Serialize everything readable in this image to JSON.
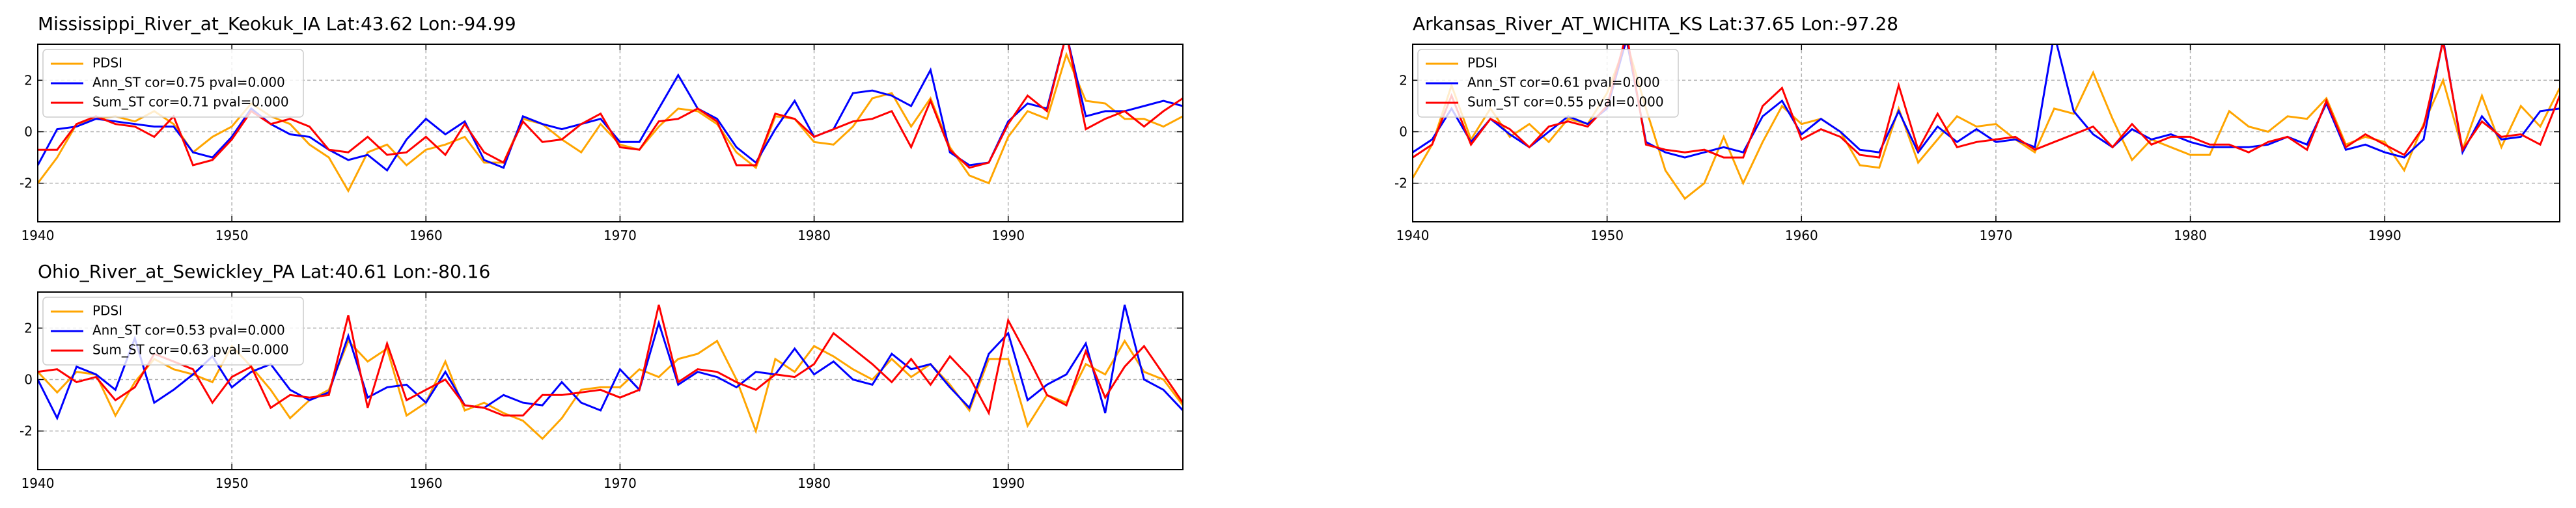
{
  "chart_data": [
    {
      "type": "line",
      "title": "Mississippi_River_at_Keokuk_IA  Lat:43.62 Lon:-94.99",
      "x": [
        1940,
        1941,
        1942,
        1943,
        1944,
        1945,
        1946,
        1947,
        1948,
        1949,
        1950,
        1951,
        1952,
        1953,
        1954,
        1955,
        1956,
        1957,
        1958,
        1959,
        1960,
        1961,
        1962,
        1963,
        1964,
        1965,
        1966,
        1967,
        1968,
        1969,
        1970,
        1971,
        1972,
        1973,
        1974,
        1975,
        1976,
        1977,
        1978,
        1979,
        1980,
        1981,
        1982,
        1983,
        1984,
        1985,
        1986,
        1987,
        1988,
        1989,
        1990,
        1991,
        1992,
        1993,
        1994,
        1995,
        1996,
        1997,
        1998,
        1999
      ],
      "series": [
        {
          "name": "PDSI",
          "color": "#ffa500",
          "values": [
            -2.0,
            -1.0,
            0.3,
            0.5,
            0.6,
            0.4,
            0.8,
            0.3,
            -0.8,
            -0.2,
            0.2,
            1.1,
            0.6,
            0.3,
            -0.5,
            -1.0,
            -2.3,
            -0.8,
            -0.5,
            -1.3,
            -0.7,
            -0.5,
            -0.2,
            -1.2,
            -1.2,
            0.5,
            0.3,
            -0.3,
            -0.8,
            0.3,
            -0.5,
            -0.7,
            0.2,
            0.9,
            0.8,
            0.3,
            -0.8,
            -1.4,
            0.6,
            0.5,
            -0.4,
            -0.5,
            0.2,
            1.3,
            1.5,
            0.2,
            1.3,
            -0.6,
            -1.7,
            -2.0,
            -0.2,
            0.8,
            0.5,
            3.0,
            1.2,
            1.1,
            0.5,
            0.5,
            0.2,
            0.6
          ]
        },
        {
          "name": "Ann_ST cor=0.75 pval=0.000",
          "color": "#0000ff",
          "values": [
            -1.3,
            0.1,
            0.2,
            0.5,
            0.4,
            0.3,
            0.2,
            0.2,
            -0.8,
            -1.0,
            -0.2,
            0.9,
            0.3,
            -0.1,
            -0.2,
            -0.7,
            -1.1,
            -0.9,
            -1.5,
            -0.3,
            0.5,
            -0.1,
            0.4,
            -1.1,
            -1.4,
            0.6,
            0.3,
            0.1,
            0.3,
            0.5,
            -0.4,
            -0.4,
            0.9,
            2.2,
            0.9,
            0.5,
            -0.6,
            -1.2,
            0.1,
            1.2,
            -0.2,
            0.1,
            1.5,
            1.6,
            1.4,
            1.0,
            2.4,
            -0.8,
            -1.3,
            -1.2,
            0.4,
            1.1,
            0.9,
            3.8,
            0.6,
            0.8,
            0.8,
            1.0,
            1.2,
            1.0
          ]
        },
        {
          "name": "Sum_ST cor=0.71 pval=0.000",
          "color": "#ff0000",
          "values": [
            -0.7,
            -0.7,
            0.3,
            0.6,
            0.3,
            0.2,
            -0.2,
            0.6,
            -1.3,
            -1.1,
            -0.3,
            0.8,
            0.3,
            0.5,
            0.2,
            -0.7,
            -0.8,
            -0.2,
            -0.9,
            -0.8,
            -0.2,
            -0.9,
            0.3,
            -0.8,
            -1.2,
            0.4,
            -0.4,
            -0.3,
            0.3,
            0.7,
            -0.6,
            -0.7,
            0.4,
            0.5,
            0.9,
            0.4,
            -1.3,
            -1.3,
            0.7,
            0.5,
            -0.2,
            0.1,
            0.4,
            0.5,
            0.8,
            -0.6,
            1.2,
            -0.7,
            -1.4,
            -1.2,
            0.3,
            1.4,
            0.8,
            3.8,
            0.1,
            0.5,
            0.8,
            0.2,
            0.8,
            1.3
          ]
        }
      ],
      "xlim": [
        1940,
        1999
      ],
      "xticks": [
        1940,
        1950,
        1960,
        1970,
        1980,
        1990
      ],
      "ylim": [
        -3.5,
        3.4
      ],
      "yticks": [
        -2,
        0,
        2
      ],
      "grid": true,
      "legend": "upper left"
    },
    {
      "type": "line",
      "title": "Arkansas_River_AT_WICHITA_KS  Lat:37.65 Lon:-97.28",
      "x": [
        1940,
        1941,
        1942,
        1943,
        1944,
        1945,
        1946,
        1947,
        1948,
        1949,
        1950,
        1951,
        1952,
        1953,
        1954,
        1955,
        1956,
        1957,
        1958,
        1959,
        1960,
        1961,
        1962,
        1963,
        1964,
        1965,
        1966,
        1967,
        1968,
        1969,
        1970,
        1971,
        1972,
        1973,
        1974,
        1975,
        1976,
        1977,
        1978,
        1979,
        1980,
        1981,
        1982,
        1983,
        1984,
        1985,
        1986,
        1987,
        1988,
        1989,
        1990,
        1991,
        1992,
        1993,
        1994,
        1995,
        1996,
        1997,
        1998,
        1999
      ],
      "series": [
        {
          "name": "PDSI",
          "color": "#ffa500",
          "values": [
            -1.8,
            -0.5,
            1.8,
            -0.3,
            0.9,
            -0.2,
            0.3,
            -0.4,
            0.5,
            0.3,
            1.5,
            3.5,
            0.9,
            -1.5,
            -2.6,
            -2.0,
            -0.2,
            -2.0,
            -0.4,
            1.0,
            0.3,
            0.5,
            0.0,
            -1.3,
            -1.4,
            0.9,
            -1.2,
            -0.3,
            0.6,
            0.2,
            0.3,
            -0.3,
            -0.8,
            0.9,
            0.7,
            2.3,
            0.5,
            -1.1,
            -0.3,
            -0.6,
            -0.9,
            -0.9,
            0.8,
            0.2,
            0.0,
            0.6,
            0.5,
            1.3,
            -0.5,
            -0.2,
            -0.4,
            -1.5,
            0.3,
            2.0,
            -0.7,
            1.4,
            -0.6,
            1.0,
            0.2,
            1.7
          ]
        },
        {
          "name": "Ann_ST cor=0.61 pval=0.000",
          "color": "#0000ff",
          "values": [
            -0.8,
            -0.3,
            0.9,
            -0.4,
            0.5,
            -0.1,
            -0.6,
            0.0,
            0.6,
            0.3,
            0.9,
            3.6,
            -0.4,
            -0.8,
            -1.0,
            -0.8,
            -0.6,
            -0.8,
            0.6,
            1.2,
            -0.1,
            0.5,
            0.0,
            -0.7,
            -0.8,
            0.8,
            -0.8,
            0.2,
            -0.4,
            0.1,
            -0.4,
            -0.3,
            -0.6,
            3.8,
            0.8,
            -0.1,
            -0.6,
            0.1,
            -0.3,
            -0.1,
            -0.4,
            -0.6,
            -0.6,
            -0.6,
            -0.5,
            -0.2,
            -0.5,
            1.1,
            -0.7,
            -0.5,
            -0.8,
            -1.0,
            -0.3,
            3.6,
            -0.8,
            0.6,
            -0.3,
            -0.2,
            0.8,
            0.9
          ]
        },
        {
          "name": "Sum_ST cor=0.55 pval=0.000",
          "color": "#ff0000",
          "values": [
            -1.0,
            -0.5,
            1.4,
            -0.5,
            0.5,
            0.1,
            -0.6,
            0.2,
            0.4,
            0.2,
            1.0,
            3.8,
            -0.5,
            -0.7,
            -0.8,
            -0.7,
            -1.0,
            -1.0,
            1.0,
            1.7,
            -0.3,
            0.1,
            -0.2,
            -0.9,
            -1.0,
            1.8,
            -0.7,
            0.7,
            -0.6,
            -0.4,
            -0.3,
            -0.2,
            -0.7,
            -0.4,
            -0.1,
            0.2,
            -0.6,
            0.3,
            -0.5,
            -0.2,
            -0.2,
            -0.5,
            -0.5,
            -0.8,
            -0.4,
            -0.2,
            -0.7,
            1.2,
            -0.6,
            -0.1,
            -0.5,
            -0.9,
            0.2,
            3.5,
            -0.7,
            0.4,
            -0.2,
            -0.1,
            -0.5,
            1.4
          ]
        }
      ],
      "xlim": [
        1940,
        1999
      ],
      "xticks": [
        1940,
        1950,
        1960,
        1970,
        1980,
        1990
      ],
      "ylim": [
        -3.5,
        3.4
      ],
      "yticks": [
        -2,
        0,
        2
      ],
      "grid": true,
      "legend": "upper left"
    },
    {
      "type": "line",
      "title": "Ohio_River_at_Sewickley_PA  Lat:40.61 Lon:-80.16",
      "x": [
        1940,
        1941,
        1942,
        1943,
        1944,
        1945,
        1946,
        1947,
        1948,
        1949,
        1950,
        1951,
        1952,
        1953,
        1954,
        1955,
        1956,
        1957,
        1958,
        1959,
        1960,
        1961,
        1962,
        1963,
        1964,
        1965,
        1966,
        1967,
        1968,
        1969,
        1970,
        1971,
        1972,
        1973,
        1974,
        1975,
        1976,
        1977,
        1978,
        1979,
        1980,
        1981,
        1982,
        1983,
        1984,
        1985,
        1986,
        1987,
        1988,
        1989,
        1990,
        1991,
        1992,
        1993,
        1994,
        1995,
        1996,
        1997,
        1998,
        1999
      ],
      "series": [
        {
          "name": "PDSI",
          "color": "#ffa500",
          "values": [
            0.3,
            -0.5,
            0.3,
            0.2,
            -1.4,
            -0.1,
            0.8,
            0.4,
            0.2,
            -0.1,
            1.3,
            0.5,
            -0.4,
            -1.5,
            -0.8,
            -0.4,
            1.5,
            0.7,
            1.2,
            -1.4,
            -0.9,
            0.7,
            -1.2,
            -0.9,
            -1.3,
            -1.6,
            -2.3,
            -1.5,
            -0.4,
            -0.3,
            -0.3,
            0.4,
            0.1,
            0.8,
            1.0,
            1.5,
            0.0,
            -2.0,
            0.8,
            0.3,
            1.3,
            0.9,
            0.4,
            0.0,
            0.8,
            0.1,
            0.6,
            -0.2,
            -1.2,
            0.8,
            0.8,
            -1.8,
            -0.6,
            -0.9,
            0.6,
            0.2,
            1.5,
            0.3,
            0.0,
            -1.0
          ]
        },
        {
          "name": "Ann_ST cor=0.53 pval=0.000",
          "color": "#0000ff",
          "values": [
            0.0,
            -1.5,
            0.5,
            0.2,
            -0.4,
            1.6,
            -0.9,
            -0.4,
            0.2,
            0.9,
            -0.3,
            0.3,
            0.6,
            -0.4,
            -0.8,
            -0.5,
            1.7,
            -0.7,
            -0.3,
            -0.2,
            -0.9,
            0.3,
            -1.0,
            -1.1,
            -0.6,
            -0.9,
            -1.0,
            -0.1,
            -0.9,
            -1.2,
            0.4,
            -0.4,
            2.2,
            -0.2,
            0.3,
            0.1,
            -0.3,
            0.3,
            0.2,
            1.2,
            0.2,
            0.7,
            0.0,
            -0.2,
            1.0,
            0.4,
            0.6,
            -0.3,
            -1.1,
            1.0,
            1.8,
            -0.8,
            -0.2,
            0.2,
            1.4,
            -1.3,
            2.9,
            0.0,
            -0.4,
            -1.2
          ]
        },
        {
          "name": "Sum_ST cor=0.63 pval=0.000",
          "color": "#ff0000",
          "values": [
            0.3,
            0.4,
            -0.1,
            0.1,
            -0.8,
            -0.3,
            1.0,
            0.7,
            0.4,
            -0.9,
            0.1,
            0.5,
            -1.1,
            -0.6,
            -0.7,
            -0.6,
            2.5,
            -1.1,
            1.4,
            -0.8,
            -0.4,
            0.0,
            -1.0,
            -1.1,
            -1.4,
            -1.4,
            -0.6,
            -0.6,
            -0.5,
            -0.4,
            -0.7,
            -0.4,
            2.9,
            -0.1,
            0.4,
            0.3,
            -0.1,
            -0.4,
            0.2,
            0.1,
            0.6,
            1.8,
            1.2,
            0.6,
            -0.1,
            0.8,
            -0.2,
            0.9,
            0.1,
            -1.3,
            2.3,
            0.9,
            -0.6,
            -1.0,
            1.1,
            -0.7,
            0.5,
            1.3,
            0.2,
            -0.9
          ]
        }
      ],
      "xlim": [
        1940,
        1999
      ],
      "xticks": [
        1940,
        1950,
        1960,
        1970,
        1980,
        1990
      ],
      "ylim": [
        -3.5,
        3.4
      ],
      "yticks": [
        -2,
        0,
        2
      ],
      "grid": true,
      "legend": "upper left"
    }
  ]
}
